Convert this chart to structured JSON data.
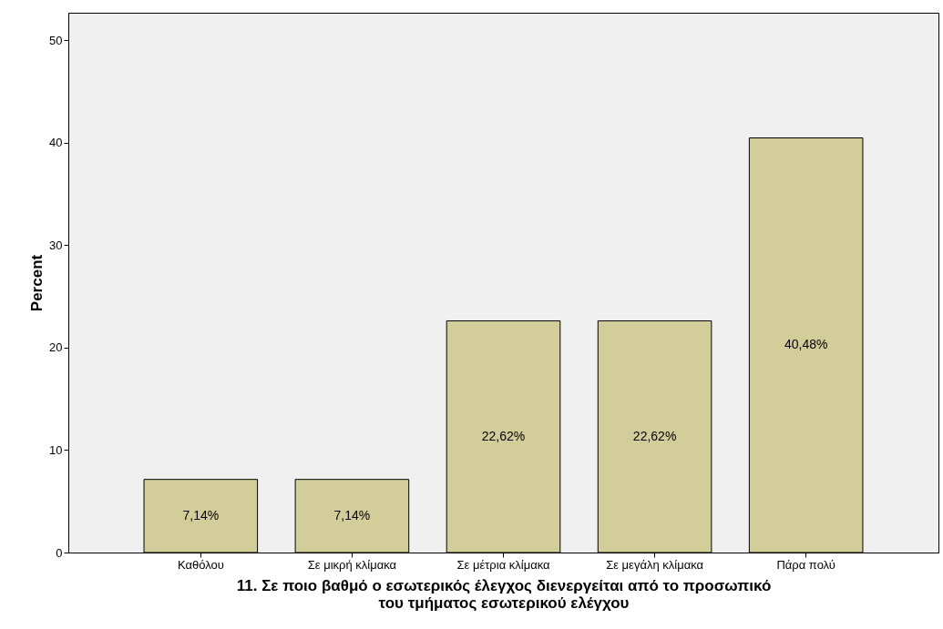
{
  "chart_data": {
    "type": "bar",
    "xlabel": "11. Σε ποιο βαθμό ο εσωτερικός έλεγχος διενεργείται από το προσωπικό\nτου τμήματος εσωτερικού ελέγχου",
    "ylabel": "Percent",
    "categories": [
      "Καθόλου",
      "Σε μικρή κλίμακα",
      "Σε μέτρια κλίμακα",
      "Σε μεγάλη κλίμακα",
      "Πάρα πολύ"
    ],
    "values": [
      7.14,
      7.14,
      22.62,
      22.62,
      40.48
    ],
    "value_labels": [
      "7,14%",
      "7,14%",
      "22,62%",
      "22,62%",
      "40,48%"
    ],
    "color": "#d3cd9a",
    "ylim": [
      0,
      52.7
    ],
    "yticks": [
      0,
      10,
      20,
      30,
      40,
      50
    ],
    "grid": false
  }
}
